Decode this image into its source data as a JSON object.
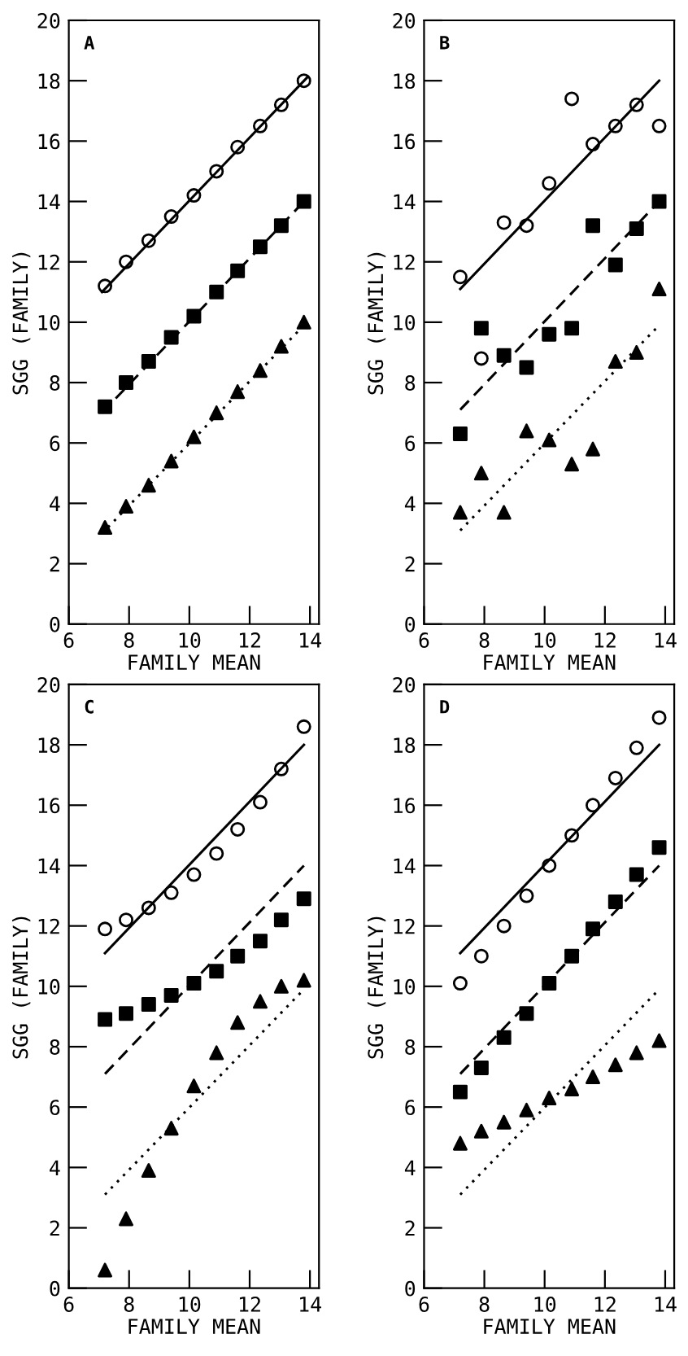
{
  "chart_data": [
    {
      "type": "scatter",
      "xlabel": "FAMILY MEAN",
      "ylabel": "SGG (FAMILY)",
      "annotations": [
        "A"
      ],
      "xlim": [
        6,
        14.3
      ],
      "ylim": [
        0,
        20
      ],
      "xticks": [
        6,
        8,
        10,
        12,
        14
      ],
      "yticks": [
        0,
        2,
        4,
        6,
        8,
        10,
        12,
        14,
        16,
        18,
        20
      ],
      "grid": false,
      "legend": false,
      "x": [
        7.2,
        7.9,
        8.65,
        9.4,
        10.15,
        10.9,
        11.6,
        12.35,
        13.05,
        13.8
      ],
      "series": [
        {
          "color": "#000000",
          "marker": "circle",
          "values": [
            11.2,
            12.0,
            12.7,
            13.5,
            14.2,
            15.0,
            15.8,
            16.5,
            17.2,
            18.0
          ]
        },
        {
          "color": "#000000",
          "marker": "square",
          "values": [
            7.2,
            8.0,
            8.7,
            9.5,
            10.2,
            11.0,
            11.7,
            12.5,
            13.2,
            14.0
          ]
        },
        {
          "color": "#000000",
          "marker": "triangle",
          "values": [
            3.2,
            3.9,
            4.6,
            5.4,
            6.2,
            7.0,
            7.7,
            8.4,
            9.2,
            10.0
          ]
        },
        {
          "type": "line",
          "color": "#000000",
          "line_style": "solid",
          "x": [
            7.1,
            13.9
          ],
          "values": [
            11.0,
            18.1
          ]
        },
        {
          "type": "line",
          "color": "#000000",
          "line_style": "dashed",
          "x": [
            7.1,
            13.9
          ],
          "values": [
            7.0,
            14.1
          ]
        },
        {
          "type": "line",
          "color": "#000000",
          "line_style": "dotted",
          "x": [
            7.1,
            13.9
          ],
          "values": [
            3.0,
            10.0
          ]
        }
      ]
    },
    {
      "type": "scatter",
      "xlabel": "FAMILY MEAN",
      "ylabel": "SGG (FAMILY)",
      "annotations": [
        "B"
      ],
      "xlim": [
        6,
        14.3
      ],
      "ylim": [
        0,
        20
      ],
      "xticks": [
        6,
        8,
        10,
        12,
        14
      ],
      "yticks": [
        0,
        2,
        4,
        6,
        8,
        10,
        12,
        14,
        16,
        18,
        20
      ],
      "grid": false,
      "legend": false,
      "x": [
        7.2,
        7.9,
        8.65,
        9.4,
        10.15,
        10.9,
        11.6,
        12.35,
        13.05,
        13.8
      ],
      "series": [
        {
          "color": "#000000",
          "marker": "circle",
          "values": [
            11.5,
            8.8,
            13.3,
            13.2,
            14.6,
            17.4,
            15.9,
            16.5,
            17.2,
            16.5
          ]
        },
        {
          "color": "#000000",
          "marker": "square",
          "values": [
            6.3,
            9.8,
            8.9,
            8.5,
            9.6,
            9.8,
            13.2,
            11.9,
            13.1,
            14.0
          ]
        },
        {
          "color": "#000000",
          "marker": "triangle",
          "values": [
            3.7,
            5.0,
            3.7,
            6.4,
            6.1,
            5.3,
            5.8,
            8.7,
            9.0,
            11.1
          ]
        },
        {
          "type": "line",
          "color": "#000000",
          "line_style": "solid",
          "x": [
            7.2,
            13.8
          ],
          "values": [
            11.1,
            18.0
          ]
        },
        {
          "type": "line",
          "color": "#000000",
          "line_style": "dashed",
          "x": [
            7.2,
            13.8
          ],
          "values": [
            7.1,
            14.0
          ]
        },
        {
          "type": "line",
          "color": "#000000",
          "line_style": "dotted",
          "x": [
            7.2,
            13.8
          ],
          "values": [
            3.1,
            9.9
          ]
        }
      ]
    },
    {
      "type": "scatter",
      "xlabel": "FAMILY MEAN",
      "ylabel": "SGG (FAMILY)",
      "annotations": [
        "C"
      ],
      "xlim": [
        6,
        14.3
      ],
      "ylim": [
        0,
        20
      ],
      "xticks": [
        6,
        8,
        10,
        12,
        14
      ],
      "yticks": [
        0,
        2,
        4,
        6,
        8,
        10,
        12,
        14,
        16,
        18,
        20
      ],
      "grid": false,
      "legend": false,
      "x": [
        7.2,
        7.9,
        8.65,
        9.4,
        10.15,
        10.9,
        11.6,
        12.35,
        13.05,
        13.8
      ],
      "series": [
        {
          "color": "#000000",
          "marker": "circle",
          "values": [
            11.9,
            12.2,
            12.6,
            13.1,
            13.7,
            14.4,
            15.2,
            16.1,
            17.2,
            18.6
          ]
        },
        {
          "color": "#000000",
          "marker": "square",
          "values": [
            8.9,
            9.1,
            9.4,
            9.7,
            10.1,
            10.5,
            11.0,
            11.5,
            12.2,
            12.9
          ]
        },
        {
          "color": "#000000",
          "marker": "triangle",
          "values": [
            0.6,
            2.3,
            3.9,
            5.3,
            6.7,
            7.8,
            8.8,
            9.5,
            10.0,
            10.2
          ]
        },
        {
          "type": "line",
          "color": "#000000",
          "line_style": "solid",
          "x": [
            7.2,
            13.8
          ],
          "values": [
            11.1,
            18.0
          ]
        },
        {
          "type": "line",
          "color": "#000000",
          "line_style": "dashed",
          "x": [
            7.2,
            13.8
          ],
          "values": [
            7.1,
            14.0
          ]
        },
        {
          "type": "line",
          "color": "#000000",
          "line_style": "dotted",
          "x": [
            7.2,
            13.8
          ],
          "values": [
            3.1,
            9.9
          ]
        }
      ]
    },
    {
      "type": "scatter",
      "xlabel": "FAMILY MEAN",
      "ylabel": "SGG (FAMILY)",
      "annotations": [
        "D"
      ],
      "xlim": [
        6,
        14.3
      ],
      "ylim": [
        0,
        20
      ],
      "xticks": [
        6,
        8,
        10,
        12,
        14
      ],
      "yticks": [
        0,
        2,
        4,
        6,
        8,
        10,
        12,
        14,
        16,
        18,
        20
      ],
      "grid": false,
      "legend": false,
      "x": [
        7.2,
        7.9,
        8.65,
        9.4,
        10.15,
        10.9,
        11.6,
        12.35,
        13.05,
        13.8
      ],
      "series": [
        {
          "color": "#000000",
          "marker": "circle",
          "values": [
            10.1,
            11.0,
            12.0,
            13.0,
            14.0,
            15.0,
            16.0,
            16.9,
            17.9,
            18.9
          ]
        },
        {
          "color": "#000000",
          "marker": "square",
          "values": [
            6.5,
            7.3,
            8.3,
            9.1,
            10.1,
            11.0,
            11.9,
            12.8,
            13.7,
            14.6
          ]
        },
        {
          "color": "#000000",
          "marker": "triangle",
          "values": [
            4.8,
            5.2,
            5.5,
            5.9,
            6.3,
            6.6,
            7.0,
            7.4,
            7.8,
            8.2
          ]
        },
        {
          "type": "line",
          "color": "#000000",
          "line_style": "solid",
          "x": [
            7.2,
            13.8
          ],
          "values": [
            11.1,
            18.0
          ]
        },
        {
          "type": "line",
          "color": "#000000",
          "line_style": "dashed",
          "x": [
            7.2,
            13.8
          ],
          "values": [
            7.1,
            14.0
          ]
        },
        {
          "type": "line",
          "color": "#000000",
          "line_style": "dotted",
          "x": [
            7.2,
            13.8
          ],
          "values": [
            3.1,
            9.9
          ]
        }
      ]
    }
  ]
}
